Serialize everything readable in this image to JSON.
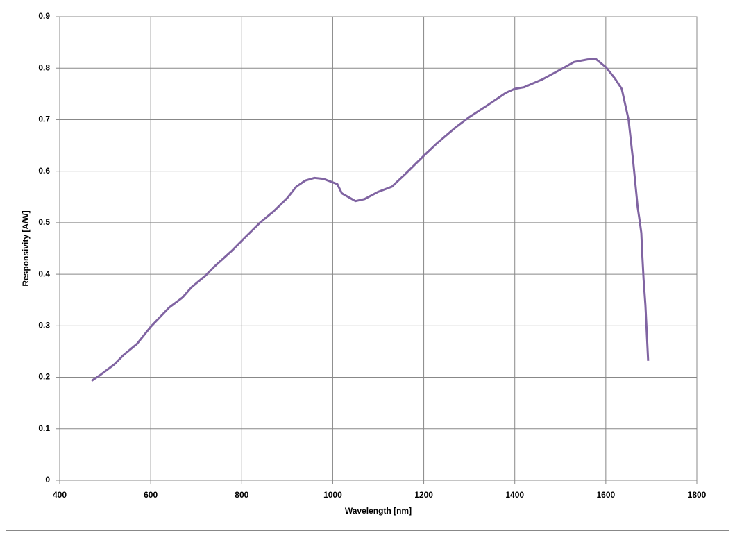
{
  "chart_data": {
    "type": "line",
    "xlabel": "Wavelength [nm]",
    "ylabel": "Responsivity [A/W]",
    "xlim": [
      400,
      1800
    ],
    "xticks": [
      400,
      600,
      800,
      1000,
      1200,
      1400,
      1600,
      1800
    ],
    "ylim": [
      0,
      0.9
    ],
    "yticks": [
      0,
      0.1,
      0.2,
      0.3,
      0.4,
      0.5,
      0.6,
      0.7,
      0.8,
      0.9
    ],
    "grid": true,
    "x": [
      470,
      490,
      520,
      540,
      570,
      600,
      640,
      670,
      690,
      720,
      740,
      780,
      800,
      840,
      870,
      900,
      920,
      940,
      960,
      980,
      1010,
      1020,
      1050,
      1070,
      1100,
      1130,
      1160,
      1200,
      1230,
      1270,
      1300,
      1340,
      1380,
      1400,
      1420,
      1460,
      1500,
      1530,
      1560,
      1578,
      1600,
      1620,
      1635,
      1650,
      1660,
      1670,
      1675,
      1678,
      1680,
      1683,
      1687,
      1693
    ],
    "series": [
      {
        "color": "#8064a2",
        "values": [
          0.193,
          0.205,
          0.225,
          0.243,
          0.265,
          0.298,
          0.335,
          0.355,
          0.375,
          0.397,
          0.415,
          0.447,
          0.465,
          0.5,
          0.522,
          0.548,
          0.57,
          0.582,
          0.587,
          0.585,
          0.575,
          0.557,
          0.542,
          0.546,
          0.56,
          0.57,
          0.595,
          0.63,
          0.655,
          0.685,
          0.705,
          0.728,
          0.752,
          0.76,
          0.763,
          0.778,
          0.797,
          0.812,
          0.817,
          0.818,
          0.802,
          0.78,
          0.76,
          0.7,
          0.62,
          0.53,
          0.5,
          0.48,
          0.44,
          0.39,
          0.34,
          0.232
        ]
      }
    ]
  }
}
